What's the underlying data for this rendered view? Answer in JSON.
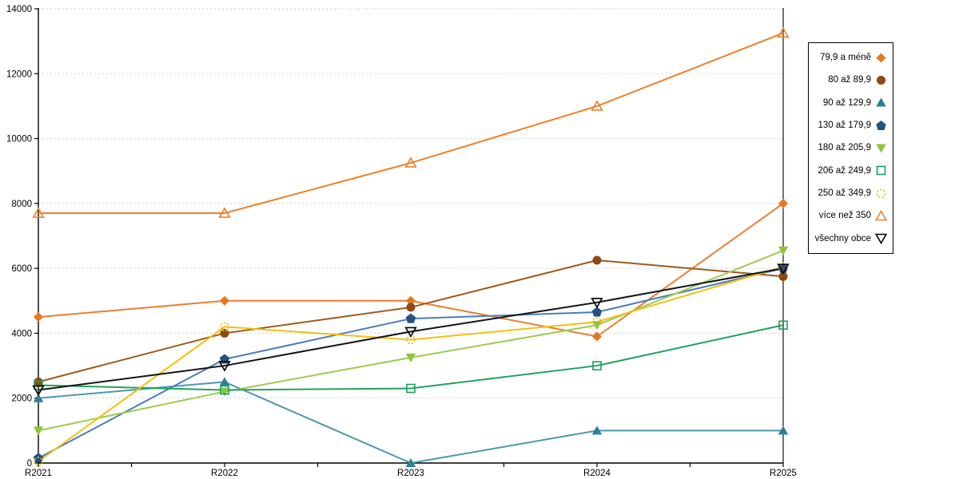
{
  "chart_data": {
    "type": "line",
    "title": "",
    "xlabel": "",
    "ylabel": "",
    "x_categories": [
      "R2021",
      "R2022",
      "R2023",
      "R2024",
      "R2025"
    ],
    "ylim": [
      0,
      14000
    ],
    "y_tick_step": 2000,
    "y_tick_labels": [
      "0",
      "2000",
      "4000",
      "6000",
      "8000",
      "10000",
      "12000",
      "14000"
    ],
    "grid": "horizontal-dashed",
    "legend_position": "top-right",
    "series": [
      {
        "name": "79,9 a méně",
        "marker": "diamond-filled",
        "line_color": "#ED7D31",
        "marker_color": "#E8761E",
        "values": [
          4500,
          5000,
          5000,
          3900,
          8000
        ]
      },
      {
        "name": "80 až 89,9",
        "marker": "circle-filled",
        "line_color": "#9C5B1D",
        "marker_color": "#8C4A12",
        "values": [
          2500,
          4000,
          4800,
          6250,
          5750
        ]
      },
      {
        "name": "90 až 129,9",
        "marker": "triangle-up-filled",
        "line_color": "#4E97AC",
        "marker_color": "#2E7F99",
        "values": [
          2000,
          2500,
          0,
          1000,
          1000
        ]
      },
      {
        "name": "130 až 179,9",
        "marker": "pentagon-filled",
        "line_color": "#4A7CBB",
        "marker_color": "#24527E",
        "values": [
          150,
          3200,
          4450,
          4650,
          6000
        ]
      },
      {
        "name": "180 až 205,9",
        "marker": "triangle-down-filled",
        "line_color": "#9DCB52",
        "marker_color": "#8CC63E",
        "values": [
          1000,
          2200,
          3250,
          4250,
          6550
        ]
      },
      {
        "name": "206 až 249,9",
        "marker": "square-open",
        "line_color": "#1FA45C",
        "marker_color": "#17A05E",
        "values": [
          2400,
          2250,
          2300,
          3000,
          4250
        ]
      },
      {
        "name": "250 až 349,9",
        "marker": "circle-open-dashed",
        "line_color": "#F2C00E",
        "marker_color": "#F2BE0E",
        "values": [
          50,
          4200,
          3800,
          4350,
          6050
        ]
      },
      {
        "name": "více než 350",
        "marker": "triangle-up-open",
        "line_color": "#F07E26",
        "marker_color": "#F07E26",
        "values": [
          7700,
          7700,
          9250,
          11000,
          13250
        ]
      },
      {
        "name": "všechny obce",
        "marker": "triangle-down-open",
        "line_color": "#141414",
        "marker_color": "#000000",
        "values": [
          2250,
          3000,
          4050,
          4950,
          6000
        ]
      }
    ],
    "axis_color": "#000000",
    "gridline_color": "#bfbfbf",
    "background_color": "#ffffff"
  }
}
